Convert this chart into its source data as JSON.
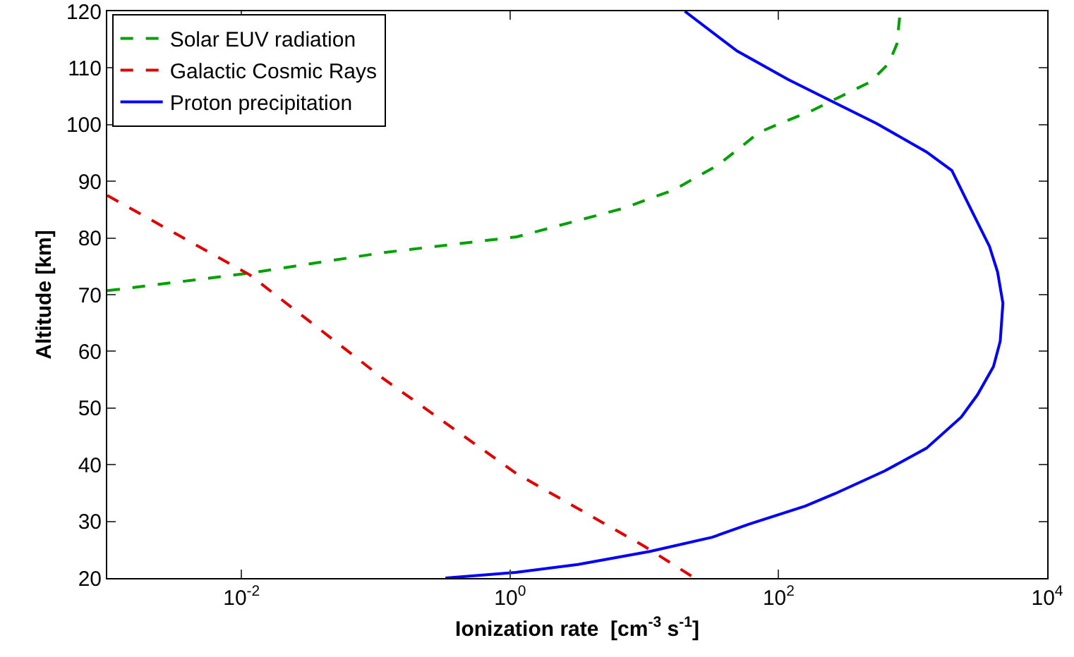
{
  "chart_data": {
    "type": "line",
    "xlabel": "Ionization rate  [cm$^{-3}$ s$^{-1}$]",
    "ylabel": "Altitude [km]",
    "log": "x",
    "grid": false,
    "legend": "top left",
    "marker": "none",
    "xlim": [
      0.001,
      10000
    ],
    "xticks": [
      {
        "value": 0.01,
        "label": "10$^{-2}$"
      },
      {
        "value": 1,
        "label": "10$^{0}$"
      },
      {
        "value": 100,
        "label": "10$^{2}$"
      },
      {
        "value": 10000,
        "label": "10$^{4}$"
      }
    ],
    "ylim": [
      20,
      120
    ],
    "yticks": [
      20,
      30,
      40,
      50,
      60,
      70,
      80,
      90,
      100,
      110,
      120
    ],
    "series": [
      {
        "name": "Solar EUV radiation",
        "color": "#00a000",
        "line_style": "dashed",
        "x": [
          0.001,
          0.0115,
          0.112,
          1.12,
          6.9,
          16.6,
          35,
          54,
          71,
          102,
          178,
          309,
          479,
          661,
          759,
          794,
          794
        ],
        "values": [
          70.7,
          73.8,
          77.4,
          80.2,
          85.2,
          88.5,
          92.8,
          96.3,
          98.6,
          100.2,
          102.5,
          105.3,
          107.5,
          110.8,
          114.2,
          118.6,
          120
        ]
      },
      {
        "name": "Galactic Cosmic Rays",
        "color": "#e00000",
        "line_style": "dashed",
        "x": [
          0.001,
          0.0115,
          0.112,
          1.12,
          10,
          23.7
        ],
        "values": [
          87.5,
          73.5,
          55.3,
          38.4,
          25.6,
          20
        ]
      },
      {
        "name": "Proton precipitation",
        "color": "#0000ff",
        "line_style": "solid",
        "x": [
          20,
          49,
          117,
          245,
          537,
          1260,
          1950,
          2690,
          3720,
          4270,
          4680,
          4470,
          3980,
          3020,
          2290,
          1260,
          617,
          263,
          158,
          60,
          32,
          11,
          3.2,
          1.1,
          0.33
        ],
        "values": [
          120,
          113,
          108,
          104.2,
          100.2,
          95.2,
          91.9,
          85.2,
          78.5,
          74,
          68.5,
          61.8,
          57.3,
          52.3,
          48.4,
          42.9,
          38.9,
          34.9,
          32.7,
          29.5,
          27.2,
          24.7,
          22.4,
          21,
          20
        ]
      }
    ]
  }
}
